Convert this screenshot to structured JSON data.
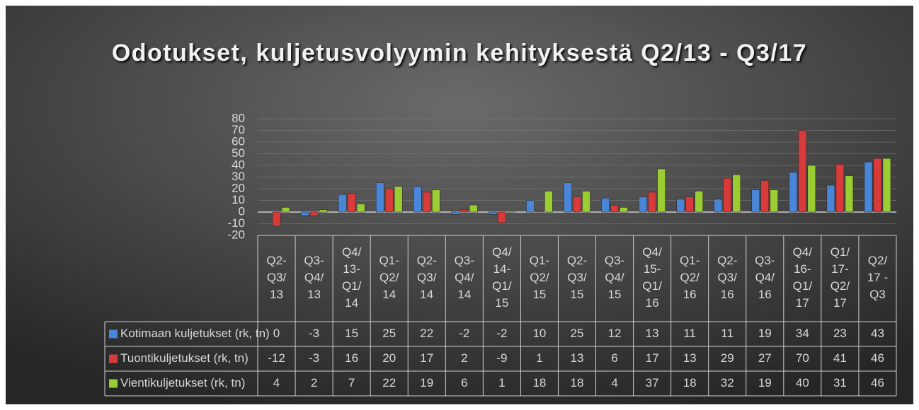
{
  "chart_data": {
    "type": "bar",
    "title": "Odotukset, kuljetusvolyymin kehityksestä Q2/13 - Q3/17",
    "categories": [
      "Q2-\nQ3/\n13",
      "Q3-\nQ4/\n13",
      "Q4/\n13-\nQ1/\n14",
      "Q1-\nQ2/\n14",
      "Q2-\nQ3/\n14",
      "Q3-\nQ4/\n14",
      "Q4/\n14-\nQ1/\n15",
      "Q1-\nQ2/\n15",
      "Q2-\nQ3/\n15",
      "Q3-\nQ4/\n15",
      "Q4/\n15-\nQ1/\n16",
      "Q1-\nQ2/\n16",
      "Q2-\nQ3/\n16",
      "Q3-\nQ4/\n16",
      "Q4/\n16-\nQ1/\n17",
      "Q1/\n17-\nQ2/\n17",
      "Q2/\n17 -\nQ3"
    ],
    "series": [
      {
        "name": "Kotimaan kuljetukset (rk, tn)",
        "color": "#4a86d8",
        "values": [
          0,
          -3,
          15,
          25,
          22,
          -2,
          -2,
          10,
          25,
          12,
          13,
          11,
          11,
          19,
          34,
          23,
          43
        ]
      },
      {
        "name": "Tuontikuljetukset (rk, tn)",
        "color": "#d93b3b",
        "values": [
          -12,
          -3,
          16,
          20,
          17,
          2,
          -9,
          1,
          13,
          6,
          17,
          13,
          29,
          27,
          70,
          41,
          46
        ]
      },
      {
        "name": "Vientikuljetukset (rk, tn)",
        "color": "#9acd32",
        "values": [
          4,
          2,
          7,
          22,
          19,
          6,
          1,
          18,
          18,
          4,
          37,
          18,
          32,
          19,
          40,
          31,
          46
        ]
      }
    ],
    "ylim": [
      -20,
      80
    ],
    "yticks": [
      -20,
      -10,
      0,
      10,
      20,
      30,
      40,
      50,
      60,
      70,
      80
    ],
    "grid": true
  }
}
